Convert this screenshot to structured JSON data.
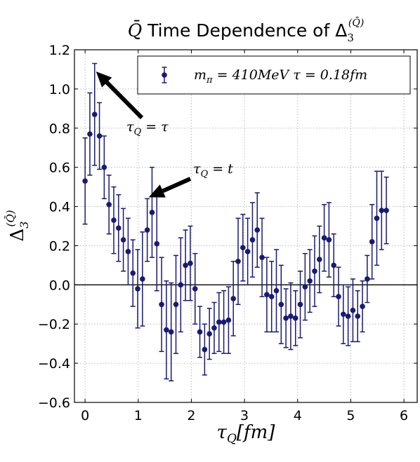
{
  "chart_data": {
    "type": "scatter",
    "title": "Q̄ Time Dependence of Δ3(Q̄)",
    "xlabel": "τQ[fm]",
    "ylabel": "Δ3(Q̄)",
    "xlim": [
      -0.2,
      6.25
    ],
    "ylim": [
      -0.6,
      1.2
    ],
    "xticks": [
      0,
      1,
      2,
      3,
      4,
      5,
      6
    ],
    "yticks": [
      -0.6,
      -0.4,
      -0.2,
      0.0,
      0.2,
      0.4,
      0.6,
      0.8,
      1.0,
      1.2
    ],
    "xtick_labels": [
      "0",
      "1",
      "2",
      "3",
      "4",
      "5",
      "6"
    ],
    "ytick_labels": [
      "−0.6",
      "−0.4",
      "−0.2",
      "0.0",
      "0.2",
      "0.4",
      "0.6",
      "0.8",
      "1.0",
      "1.2"
    ],
    "grid": true,
    "legend_position": "top-right",
    "marker_color": "#1a1a6e",
    "series": [
      {
        "name": "mπ = 410MeV τ = 0.18fm",
        "points": [
          {
            "x": 0.0,
            "y": 0.53,
            "err": 0.22
          },
          {
            "x": 0.09,
            "y": 0.77,
            "err": 0.21
          },
          {
            "x": 0.18,
            "y": 0.87,
            "err": 0.26
          },
          {
            "x": 0.27,
            "y": 0.76,
            "err": 0.17
          },
          {
            "x": 0.36,
            "y": 0.6,
            "err": 0.16
          },
          {
            "x": 0.45,
            "y": 0.41,
            "err": 0.15
          },
          {
            "x": 0.54,
            "y": 0.33,
            "err": 0.17
          },
          {
            "x": 0.63,
            "y": 0.29,
            "err": 0.17
          },
          {
            "x": 0.72,
            "y": 0.23,
            "err": 0.16
          },
          {
            "x": 0.81,
            "y": 0.17,
            "err": 0.17
          },
          {
            "x": 0.9,
            "y": 0.06,
            "err": 0.17
          },
          {
            "x": 0.99,
            "y": -0.02,
            "err": 0.2
          },
          {
            "x": 1.08,
            "y": 0.03,
            "err": 0.24
          },
          {
            "x": 1.17,
            "y": 0.28,
            "err": 0.16
          },
          {
            "x": 1.26,
            "y": 0.37,
            "err": 0.23
          },
          {
            "x": 1.35,
            "y": 0.21,
            "err": 0.24
          },
          {
            "x": 1.44,
            "y": -0.1,
            "err": 0.24
          },
          {
            "x": 1.53,
            "y": -0.23,
            "err": 0.25
          },
          {
            "x": 1.62,
            "y": -0.24,
            "err": 0.25
          },
          {
            "x": 1.71,
            "y": -0.1,
            "err": 0.25
          },
          {
            "x": 1.8,
            "y": 0.0,
            "err": 0.24
          },
          {
            "x": 1.89,
            "y": 0.1,
            "err": 0.18
          },
          {
            "x": 1.98,
            "y": 0.11,
            "err": 0.19
          },
          {
            "x": 2.07,
            "y": -0.02,
            "err": 0.18
          },
          {
            "x": 2.16,
            "y": -0.24,
            "err": 0.13
          },
          {
            "x": 2.25,
            "y": -0.33,
            "err": 0.13
          },
          {
            "x": 2.34,
            "y": -0.25,
            "err": 0.13
          },
          {
            "x": 2.43,
            "y": -0.22,
            "err": 0.13
          },
          {
            "x": 2.52,
            "y": -0.19,
            "err": 0.15
          },
          {
            "x": 2.61,
            "y": -0.19,
            "err": 0.16
          },
          {
            "x": 2.7,
            "y": -0.18,
            "err": 0.17
          },
          {
            "x": 2.79,
            "y": -0.07,
            "err": 0.19
          },
          {
            "x": 2.88,
            "y": 0.12,
            "err": 0.22
          },
          {
            "x": 2.97,
            "y": 0.19,
            "err": 0.17
          },
          {
            "x": 3.06,
            "y": 0.17,
            "err": 0.17
          },
          {
            "x": 3.15,
            "y": 0.23,
            "err": 0.19
          },
          {
            "x": 3.24,
            "y": 0.28,
            "err": 0.19
          },
          {
            "x": 3.33,
            "y": 0.14,
            "err": 0.2
          },
          {
            "x": 3.42,
            "y": -0.05,
            "err": 0.19
          },
          {
            "x": 3.51,
            "y": -0.06,
            "err": 0.18
          },
          {
            "x": 3.6,
            "y": -0.03,
            "err": 0.21
          },
          {
            "x": 3.69,
            "y": -0.1,
            "err": 0.2
          },
          {
            "x": 3.78,
            "y": -0.17,
            "err": 0.15
          },
          {
            "x": 3.87,
            "y": -0.16,
            "err": 0.17
          },
          {
            "x": 3.96,
            "y": -0.17,
            "err": 0.14
          },
          {
            "x": 4.05,
            "y": -0.1,
            "err": 0.17
          },
          {
            "x": 4.14,
            "y": -0.01,
            "err": 0.17
          },
          {
            "x": 4.23,
            "y": 0.02,
            "err": 0.16
          },
          {
            "x": 4.32,
            "y": 0.07,
            "err": 0.18
          },
          {
            "x": 4.41,
            "y": 0.13,
            "err": 0.17
          },
          {
            "x": 4.5,
            "y": 0.24,
            "err": 0.17
          },
          {
            "x": 4.59,
            "y": 0.23,
            "err": 0.19
          },
          {
            "x": 4.68,
            "y": 0.1,
            "err": 0.16
          },
          {
            "x": 4.77,
            "y": -0.06,
            "err": 0.15
          },
          {
            "x": 4.86,
            "y": -0.15,
            "err": 0.15
          },
          {
            "x": 4.95,
            "y": -0.16,
            "err": 0.15
          },
          {
            "x": 5.04,
            "y": -0.13,
            "err": 0.16
          },
          {
            "x": 5.13,
            "y": -0.16,
            "err": 0.13
          },
          {
            "x": 5.22,
            "y": -0.11,
            "err": 0.13
          },
          {
            "x": 5.31,
            "y": 0.03,
            "err": 0.12
          },
          {
            "x": 5.4,
            "y": 0.22,
            "err": 0.19
          },
          {
            "x": 5.49,
            "y": 0.34,
            "err": 0.24
          },
          {
            "x": 5.58,
            "y": 0.38,
            "err": 0.2
          },
          {
            "x": 5.67,
            "y": 0.38,
            "err": 0.17
          }
        ]
      }
    ],
    "annotations": [
      {
        "text": "τQ = τ",
        "x": 0.18,
        "y": 1.1
      },
      {
        "text": "τQ = t",
        "x": 1.17,
        "y": 0.44
      }
    ],
    "hlines": [
      0.0
    ]
  }
}
